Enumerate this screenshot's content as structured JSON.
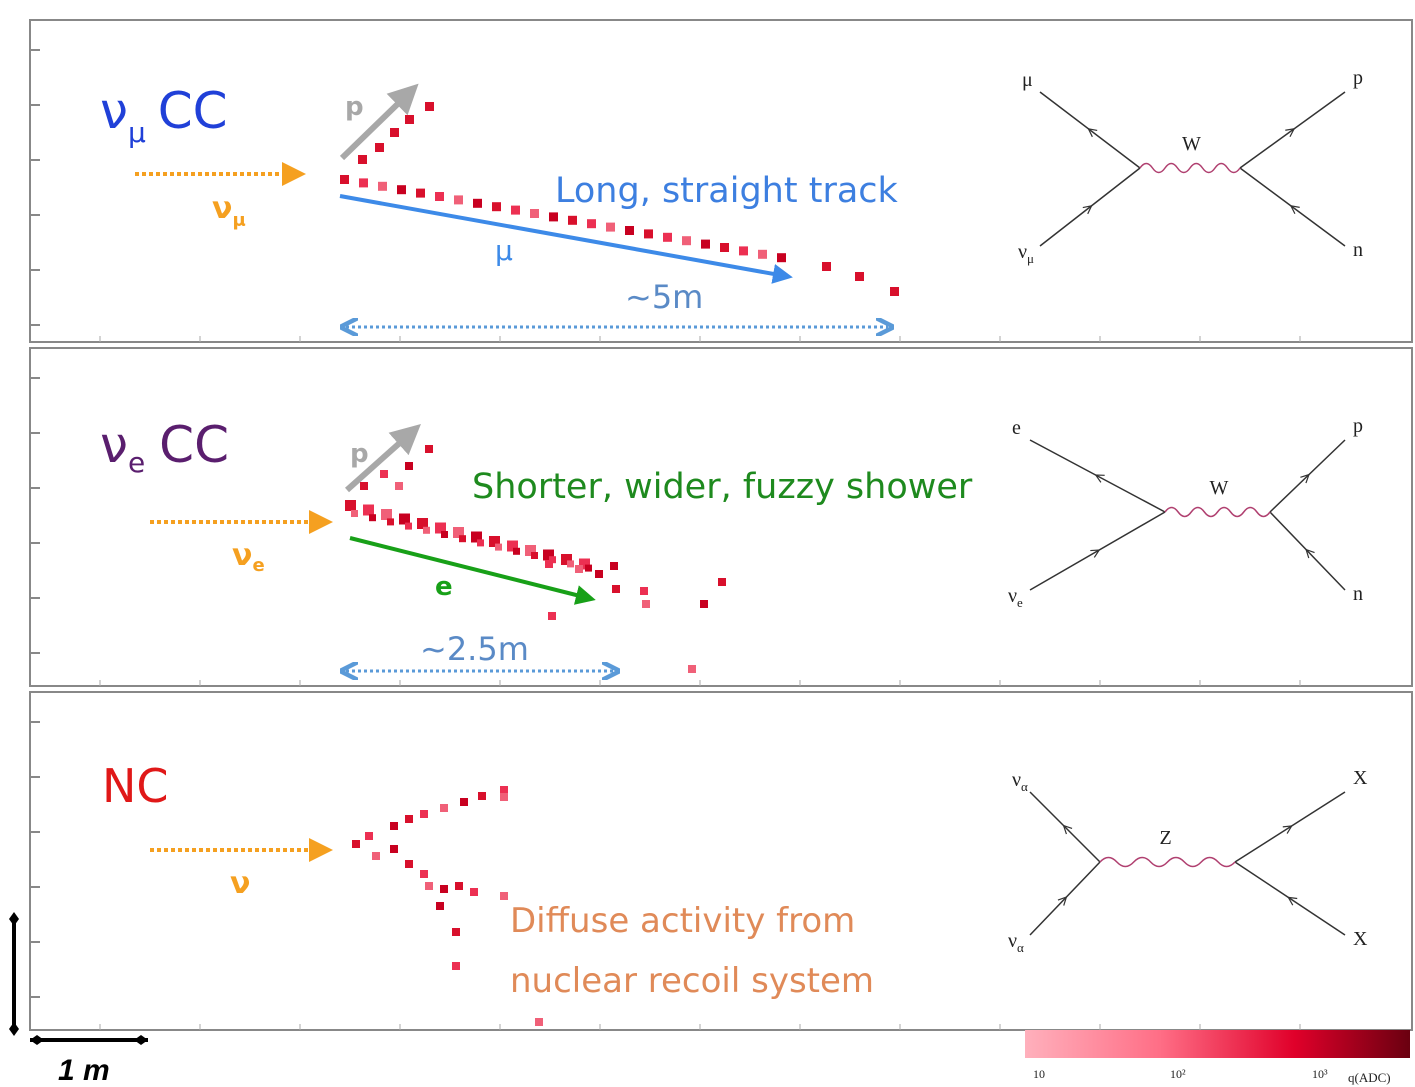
{
  "panels": [
    {
      "nu": "ν",
      "flavor": "μ",
      "kind": "CC",
      "incoming": "ν",
      "incoming_sub": "μ",
      "proton": "p",
      "lepton": "μ",
      "annotation": "Long, straight track",
      "length": "~5m",
      "feynman": {
        "top_left": "μ",
        "bottom_left": "ν",
        "bottom_left_sub": "μ",
        "boson": "W",
        "top_right": "p",
        "bottom_right": "n"
      }
    },
    {
      "nu": "ν",
      "flavor": "e",
      "kind": "CC",
      "incoming": "ν",
      "incoming_sub": "e",
      "proton": "p",
      "lepton": "e",
      "annotation": "Shorter, wider, fuzzy shower",
      "length": "~2.5m",
      "feynman": {
        "top_left": "e",
        "bottom_left": "ν",
        "bottom_left_sub": "e",
        "boson": "W",
        "top_right": "p",
        "bottom_right": "n"
      }
    },
    {
      "kind": "NC",
      "incoming": "ν",
      "annotation_lines": [
        "Diffuse activity from",
        "nuclear recoil system"
      ],
      "feynman": {
        "top_left": "ν",
        "top_left_sub": "α",
        "bottom_left": "ν",
        "bottom_left_sub": "α",
        "boson": "Z",
        "top_right": "X",
        "bottom_right": "X"
      }
    }
  ],
  "scale": {
    "label": "1 m"
  },
  "colorbar": {
    "ticks": [
      "10",
      "10²",
      "10³"
    ],
    "unit": "q(ADC)"
  }
}
